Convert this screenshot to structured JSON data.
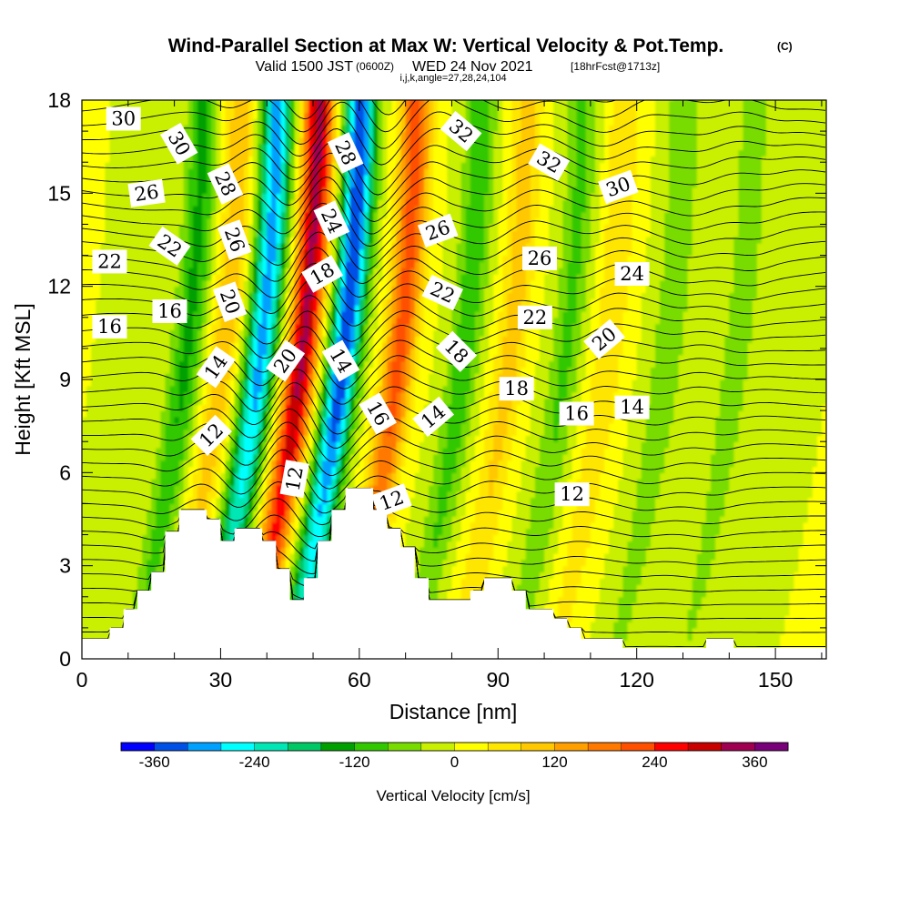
{
  "chart_data": {
    "type": "heatmap",
    "title": "Wind-Parallel Section at Max W: Vertical Velocity & Pot.Temp.",
    "title_mark": "(C)",
    "subtitle_valid": "Valid 1500 JST",
    "subtitle_utc": "(0600Z)",
    "subtitle_date": "WED 24 Nov 2021",
    "subtitle_fcst": "[18hrFcst@1713z]",
    "subtitle_indices": "i,j,k,angle=27,28,24,104",
    "xlabel": "Distance [nm]",
    "ylabel": "Height [Kft MSL]",
    "xlim": [
      0,
      161
    ],
    "ylim": [
      0,
      18
    ],
    "x_ticks": [
      "0",
      "30",
      "60",
      "90",
      "120",
      "150"
    ],
    "y_ticks": [
      "0",
      "3",
      "6",
      "9",
      "12",
      "15",
      "18"
    ],
    "colorbar": {
      "label": "Vertical Velocity [cm/s]",
      "ticks": [
        "-360",
        "-240",
        "-120",
        "0",
        "120",
        "240",
        "360"
      ],
      "range": [
        -400,
        400
      ],
      "colors": [
        "#0000ff",
        "#0050e6",
        "#00a0ff",
        "#00ffff",
        "#00e6b4",
        "#00c864",
        "#00a000",
        "#32c800",
        "#78dc00",
        "#c8f000",
        "#ffff00",
        "#ffe600",
        "#ffc800",
        "#ffa000",
        "#ff7800",
        "#ff5000",
        "#ff0000",
        "#c80000",
        "#a00050",
        "#780078"
      ]
    },
    "velocity_bands": [
      {
        "x": 22,
        "w": -130
      },
      {
        "x": 30,
        "w": 110
      },
      {
        "x": 38,
        "w": -300
      },
      {
        "x": 47,
        "w": 330
      },
      {
        "x": 56,
        "w": -360
      },
      {
        "x": 68,
        "w": 220
      },
      {
        "x": 82,
        "w": -110
      },
      {
        "x": 92,
        "w": 100
      },
      {
        "x": 104,
        "w": -90
      },
      {
        "x": 113,
        "w": 80
      },
      {
        "x": 126,
        "w": -80
      },
      {
        "x": 141,
        "w": -70
      }
    ],
    "terrain": [
      {
        "x": 0,
        "h": 0.65
      },
      {
        "x": 3,
        "h": 0.65
      },
      {
        "x": 6,
        "h": 1.0
      },
      {
        "x": 9,
        "h": 1.6
      },
      {
        "x": 12,
        "h": 2.2
      },
      {
        "x": 15,
        "h": 2.8
      },
      {
        "x": 18,
        "h": 4.1
      },
      {
        "x": 21,
        "h": 4.8
      },
      {
        "x": 24,
        "h": 4.8
      },
      {
        "x": 27,
        "h": 4.5
      },
      {
        "x": 30,
        "h": 3.8
      },
      {
        "x": 33,
        "h": 4.2
      },
      {
        "x": 36,
        "h": 4.2
      },
      {
        "x": 39,
        "h": 3.8
      },
      {
        "x": 42,
        "h": 2.9
      },
      {
        "x": 45,
        "h": 1.9
      },
      {
        "x": 48,
        "h": 2.6
      },
      {
        "x": 51,
        "h": 3.8
      },
      {
        "x": 54,
        "h": 4.8
      },
      {
        "x": 57,
        "h": 5.5
      },
      {
        "x": 60,
        "h": 5.5
      },
      {
        "x": 63,
        "h": 4.8
      },
      {
        "x": 66,
        "h": 4.2
      },
      {
        "x": 69,
        "h": 3.6
      },
      {
        "x": 72,
        "h": 2.6
      },
      {
        "x": 75,
        "h": 1.9
      },
      {
        "x": 78,
        "h": 1.9
      },
      {
        "x": 81,
        "h": 1.9
      },
      {
        "x": 84,
        "h": 2.2
      },
      {
        "x": 87,
        "h": 2.6
      },
      {
        "x": 90,
        "h": 2.6
      },
      {
        "x": 93,
        "h": 2.2
      },
      {
        "x": 96,
        "h": 1.6
      },
      {
        "x": 99,
        "h": 1.6
      },
      {
        "x": 102,
        "h": 1.3
      },
      {
        "x": 105,
        "h": 1.0
      },
      {
        "x": 108,
        "h": 0.65
      },
      {
        "x": 111,
        "h": 0.65
      },
      {
        "x": 114,
        "h": 0.65
      },
      {
        "x": 117,
        "h": 0.35
      },
      {
        "x": 120,
        "h": 0.35
      },
      {
        "x": 123,
        "h": 0.35
      },
      {
        "x": 126,
        "h": 0.35
      },
      {
        "x": 129,
        "h": 0.35
      },
      {
        "x": 132,
        "h": 0.35
      },
      {
        "x": 135,
        "h": 0.65
      },
      {
        "x": 138,
        "h": 0.65
      },
      {
        "x": 141,
        "h": 0.35
      },
      {
        "x": 144,
        "h": 0.35
      },
      {
        "x": 147,
        "h": 0.35
      },
      {
        "x": 150,
        "h": 0.35
      },
      {
        "x": 153,
        "h": 0.35
      },
      {
        "x": 156,
        "h": 0.35
      },
      {
        "x": 159,
        "h": 0.35
      },
      {
        "x": 161,
        "h": 0.35
      }
    ],
    "contour_labels": [
      {
        "text": "30",
        "x": 9,
        "y": 17.4,
        "angle": 0
      },
      {
        "text": "30",
        "x": 21,
        "y": 16.6,
        "angle": 60
      },
      {
        "text": "26",
        "x": 14,
        "y": 15.0,
        "angle": -8
      },
      {
        "text": "28",
        "x": 31,
        "y": 15.3,
        "angle": 65
      },
      {
        "text": "28",
        "x": 57,
        "y": 16.3,
        "angle": 65
      },
      {
        "text": "32",
        "x": 82,
        "y": 17.0,
        "angle": 40
      },
      {
        "text": "32",
        "x": 101,
        "y": 16.0,
        "angle": 30
      },
      {
        "text": "30",
        "x": 116,
        "y": 15.2,
        "angle": -20
      },
      {
        "text": "24",
        "x": 54,
        "y": 14.1,
        "angle": 65
      },
      {
        "text": "26",
        "x": 33,
        "y": 13.5,
        "angle": 70
      },
      {
        "text": "26",
        "x": 77,
        "y": 13.8,
        "angle": -20
      },
      {
        "text": "22",
        "x": 6,
        "y": 12.8,
        "angle": 0
      },
      {
        "text": "22",
        "x": 19,
        "y": 13.3,
        "angle": 35
      },
      {
        "text": "26",
        "x": 99,
        "y": 12.9,
        "angle": 0
      },
      {
        "text": "24",
        "x": 119,
        "y": 12.4,
        "angle": 0
      },
      {
        "text": "18",
        "x": 52,
        "y": 12.4,
        "angle": -30
      },
      {
        "text": "22",
        "x": 78,
        "y": 11.8,
        "angle": 25
      },
      {
        "text": "20",
        "x": 32,
        "y": 11.5,
        "angle": 70
      },
      {
        "text": "16",
        "x": 19,
        "y": 11.2,
        "angle": 0
      },
      {
        "text": "16",
        "x": 6,
        "y": 10.7,
        "angle": 0
      },
      {
        "text": "22",
        "x": 98,
        "y": 11.0,
        "angle": 0
      },
      {
        "text": "20",
        "x": 113,
        "y": 10.3,
        "angle": -40
      },
      {
        "text": "18",
        "x": 81,
        "y": 9.9,
        "angle": 45
      },
      {
        "text": "14",
        "x": 29,
        "y": 9.4,
        "angle": -55
      },
      {
        "text": "20",
        "x": 44,
        "y": 9.6,
        "angle": -55
      },
      {
        "text": "14",
        "x": 56,
        "y": 9.6,
        "angle": 60
      },
      {
        "text": "18",
        "x": 94,
        "y": 8.7,
        "angle": 0
      },
      {
        "text": "16",
        "x": 107,
        "y": 7.9,
        "angle": 0
      },
      {
        "text": "14",
        "x": 119,
        "y": 8.1,
        "angle": 0
      },
      {
        "text": "16",
        "x": 64,
        "y": 7.9,
        "angle": 60
      },
      {
        "text": "14",
        "x": 76,
        "y": 7.8,
        "angle": -40
      },
      {
        "text": "12",
        "x": 28,
        "y": 7.2,
        "angle": -45
      },
      {
        "text": "12",
        "x": 46,
        "y": 5.8,
        "angle": -80
      },
      {
        "text": "12",
        "x": 67,
        "y": 5.1,
        "angle": -20
      },
      {
        "text": "12",
        "x": 106,
        "y": 5.3,
        "angle": 0
      }
    ]
  }
}
